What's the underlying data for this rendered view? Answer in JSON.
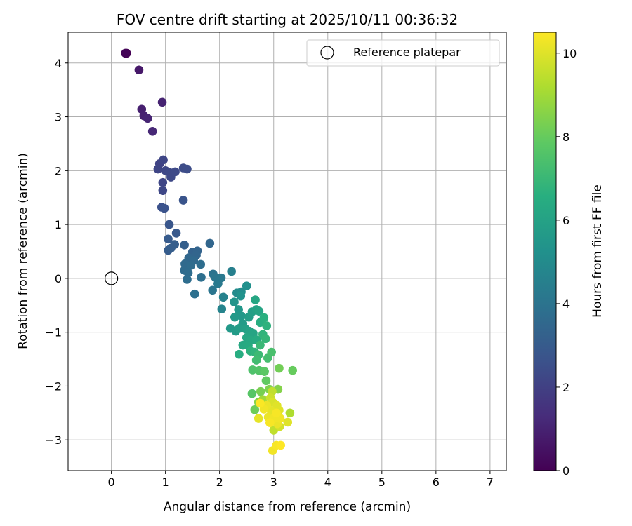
{
  "chart_data": {
    "type": "scatter",
    "title": "FOV centre drift starting at 2025/10/11 00:36:32",
    "xlabel": "Angular distance from reference (arcmin)",
    "ylabel": "Rotation from reference (arcmin)",
    "xlim": [
      -0.8,
      7.3
    ],
    "ylim": [
      -3.57,
      4.57
    ],
    "xticks": [
      0,
      1,
      2,
      3,
      4,
      5,
      6,
      7
    ],
    "yticks": [
      -3,
      -2,
      -1,
      0,
      1,
      2,
      3,
      4
    ],
    "grid": true,
    "legend": {
      "position": "top-right",
      "entries": [
        "Reference platepar"
      ]
    },
    "reference_point": {
      "x": 0,
      "y": 0,
      "label": "Reference platepar"
    },
    "colorbar": {
      "label": "Hours from first FF file",
      "colormap": "viridis",
      "range": [
        0,
        10.5
      ],
      "ticks": [
        0,
        2,
        4,
        6,
        8,
        10
      ]
    },
    "points": [
      {
        "x": 0.28,
        "y": 4.18,
        "h": 0.0
      },
      {
        "x": 0.26,
        "y": 4.18,
        "h": 0.1
      },
      {
        "x": 0.51,
        "y": 3.87,
        "h": 0.7
      },
      {
        "x": 0.94,
        "y": 3.27,
        "h": 1.0
      },
      {
        "x": 0.56,
        "y": 3.14,
        "h": 0.9
      },
      {
        "x": 0.6,
        "y": 3.02,
        "h": 0.95
      },
      {
        "x": 0.67,
        "y": 2.97,
        "h": 1.05
      },
      {
        "x": 0.76,
        "y": 2.73,
        "h": 1.15
      },
      {
        "x": 0.96,
        "y": 2.2,
        "h": 2.2
      },
      {
        "x": 0.89,
        "y": 2.13,
        "h": 2.1
      },
      {
        "x": 0.86,
        "y": 2.03,
        "h": 2.15
      },
      {
        "x": 1.0,
        "y": 2.0,
        "h": 2.25
      },
      {
        "x": 1.07,
        "y": 1.97,
        "h": 2.3
      },
      {
        "x": 1.18,
        "y": 1.98,
        "h": 2.35
      },
      {
        "x": 1.1,
        "y": 1.88,
        "h": 2.3
      },
      {
        "x": 1.33,
        "y": 2.05,
        "h": 2.4
      },
      {
        "x": 1.4,
        "y": 2.03,
        "h": 2.45
      },
      {
        "x": 0.95,
        "y": 1.78,
        "h": 2.2
      },
      {
        "x": 0.95,
        "y": 1.63,
        "h": 2.25
      },
      {
        "x": 1.33,
        "y": 1.45,
        "h": 2.7
      },
      {
        "x": 0.93,
        "y": 1.32,
        "h": 2.6
      },
      {
        "x": 0.98,
        "y": 1.3,
        "h": 2.65
      },
      {
        "x": 1.07,
        "y": 1.0,
        "h": 2.8
      },
      {
        "x": 1.2,
        "y": 0.84,
        "h": 2.9
      },
      {
        "x": 1.05,
        "y": 0.73,
        "h": 3.0
      },
      {
        "x": 1.17,
        "y": 0.63,
        "h": 3.1
      },
      {
        "x": 1.35,
        "y": 0.62,
        "h": 3.15
      },
      {
        "x": 1.05,
        "y": 0.52,
        "h": 3.05
      },
      {
        "x": 1.1,
        "y": 0.56,
        "h": 3.1
      },
      {
        "x": 1.5,
        "y": 0.49,
        "h": 3.3
      },
      {
        "x": 1.59,
        "y": 0.51,
        "h": 3.35
      },
      {
        "x": 1.57,
        "y": 0.43,
        "h": 3.4
      },
      {
        "x": 1.82,
        "y": 0.65,
        "h": 3.45
      },
      {
        "x": 1.43,
        "y": 0.38,
        "h": 3.5
      },
      {
        "x": 1.52,
        "y": 0.33,
        "h": 3.55
      },
      {
        "x": 1.36,
        "y": 0.27,
        "h": 3.6
      },
      {
        "x": 1.47,
        "y": 0.24,
        "h": 3.7
      },
      {
        "x": 1.65,
        "y": 0.26,
        "h": 3.75
      },
      {
        "x": 1.35,
        "y": 0.15,
        "h": 3.65
      },
      {
        "x": 1.42,
        "y": 0.1,
        "h": 3.7
      },
      {
        "x": 1.88,
        "y": 0.08,
        "h": 4.0
      },
      {
        "x": 1.92,
        "y": 0.02,
        "h": 4.1
      },
      {
        "x": 1.98,
        "y": -0.02,
        "h": 4.15
      },
      {
        "x": 2.03,
        "y": 0.01,
        "h": 4.2
      },
      {
        "x": 1.97,
        "y": -0.1,
        "h": 4.25
      },
      {
        "x": 1.4,
        "y": -0.02,
        "h": 3.75
      },
      {
        "x": 1.66,
        "y": 0.02,
        "h": 3.8
      },
      {
        "x": 1.87,
        "y": -0.22,
        "h": 4.05
      },
      {
        "x": 1.54,
        "y": -0.29,
        "h": 3.85
      },
      {
        "x": 2.22,
        "y": 0.13,
        "h": 4.5
      },
      {
        "x": 2.07,
        "y": -0.35,
        "h": 4.6
      },
      {
        "x": 2.04,
        "y": -0.57,
        "h": 4.7
      },
      {
        "x": 2.32,
        "y": -0.27,
        "h": 5.0
      },
      {
        "x": 2.4,
        "y": -0.25,
        "h": 5.1
      },
      {
        "x": 2.5,
        "y": -0.14,
        "h": 5.2
      },
      {
        "x": 2.39,
        "y": -0.33,
        "h": 5.3
      },
      {
        "x": 2.27,
        "y": -0.44,
        "h": 5.4
      },
      {
        "x": 2.35,
        "y": -0.58,
        "h": 5.5
      },
      {
        "x": 2.4,
        "y": -0.7,
        "h": 5.55
      },
      {
        "x": 2.28,
        "y": -0.72,
        "h": 5.6
      },
      {
        "x": 2.43,
        "y": -0.84,
        "h": 5.7
      },
      {
        "x": 2.54,
        "y": -0.72,
        "h": 5.8
      },
      {
        "x": 2.6,
        "y": -0.62,
        "h": 5.9
      },
      {
        "x": 2.68,
        "y": -0.58,
        "h": 6.0
      },
      {
        "x": 2.73,
        "y": -0.61,
        "h": 6.1
      },
      {
        "x": 2.66,
        "y": -0.4,
        "h": 6.2
      },
      {
        "x": 2.2,
        "y": -0.93,
        "h": 5.6
      },
      {
        "x": 2.3,
        "y": -0.98,
        "h": 5.7
      },
      {
        "x": 2.36,
        "y": -0.93,
        "h": 5.8
      },
      {
        "x": 2.48,
        "y": -0.94,
        "h": 5.9
      },
      {
        "x": 2.55,
        "y": -0.98,
        "h": 6.0
      },
      {
        "x": 2.62,
        "y": -1.02,
        "h": 6.1
      },
      {
        "x": 2.5,
        "y": -1.1,
        "h": 6.2
      },
      {
        "x": 2.58,
        "y": -1.15,
        "h": 6.3
      },
      {
        "x": 2.68,
        "y": -1.14,
        "h": 6.4
      },
      {
        "x": 2.75,
        "y": -0.82,
        "h": 6.5
      },
      {
        "x": 2.82,
        "y": -0.73,
        "h": 6.6
      },
      {
        "x": 2.87,
        "y": -0.88,
        "h": 6.7
      },
      {
        "x": 2.8,
        "y": -1.04,
        "h": 6.8
      },
      {
        "x": 2.85,
        "y": -1.12,
        "h": 6.9
      },
      {
        "x": 2.75,
        "y": -1.24,
        "h": 7.0
      },
      {
        "x": 2.43,
        "y": -1.24,
        "h": 6.3
      },
      {
        "x": 2.53,
        "y": -1.25,
        "h": 6.4
      },
      {
        "x": 2.36,
        "y": -1.41,
        "h": 6.5
      },
      {
        "x": 2.57,
        "y": -1.35,
        "h": 6.7
      },
      {
        "x": 2.65,
        "y": -1.37,
        "h": 6.8
      },
      {
        "x": 2.72,
        "y": -1.42,
        "h": 7.1
      },
      {
        "x": 2.68,
        "y": -1.52,
        "h": 7.2
      },
      {
        "x": 2.89,
        "y": -1.48,
        "h": 7.3
      },
      {
        "x": 2.96,
        "y": -1.37,
        "h": 7.4
      },
      {
        "x": 2.61,
        "y": -1.7,
        "h": 7.5
      },
      {
        "x": 2.73,
        "y": -1.71,
        "h": 7.6
      },
      {
        "x": 2.83,
        "y": -1.73,
        "h": 7.8
      },
      {
        "x": 2.86,
        "y": -1.9,
        "h": 7.9
      },
      {
        "x": 3.1,
        "y": -1.67,
        "h": 8.2
      },
      {
        "x": 3.35,
        "y": -1.71,
        "h": 8.0
      },
      {
        "x": 2.6,
        "y": -2.14,
        "h": 7.7
      },
      {
        "x": 2.76,
        "y": -2.1,
        "h": 8.3
      },
      {
        "x": 2.92,
        "y": -2.06,
        "h": 8.4
      },
      {
        "x": 3.08,
        "y": -2.06,
        "h": 8.5
      },
      {
        "x": 2.65,
        "y": -2.44,
        "h": 8.1
      },
      {
        "x": 2.72,
        "y": -2.3,
        "h": 8.6
      },
      {
        "x": 2.8,
        "y": -2.25,
        "h": 9.0
      },
      {
        "x": 2.97,
        "y": -2.1,
        "h": 9.5
      },
      {
        "x": 2.94,
        "y": -2.22,
        "h": 9.7
      },
      {
        "x": 2.98,
        "y": -2.3,
        "h": 9.9
      },
      {
        "x": 3.06,
        "y": -2.36,
        "h": 10.0
      },
      {
        "x": 2.87,
        "y": -2.36,
        "h": 10.2
      },
      {
        "x": 2.82,
        "y": -2.43,
        "h": 10.3
      },
      {
        "x": 2.95,
        "y": -2.46,
        "h": 10.1
      },
      {
        "x": 3.05,
        "y": -2.5,
        "h": 10.4
      },
      {
        "x": 3.1,
        "y": -2.45,
        "h": 10.0
      },
      {
        "x": 2.9,
        "y": -2.58,
        "h": 10.2
      },
      {
        "x": 3.0,
        "y": -2.6,
        "h": 10.3
      },
      {
        "x": 2.93,
        "y": -2.68,
        "h": 10.4
      },
      {
        "x": 3.07,
        "y": -2.7,
        "h": 10.2
      },
      {
        "x": 3.11,
        "y": -2.75,
        "h": 9.8
      },
      {
        "x": 3.3,
        "y": -2.5,
        "h": 9.2
      },
      {
        "x": 3.26,
        "y": -2.67,
        "h": 10.0
      },
      {
        "x": 2.75,
        "y": -2.32,
        "h": 10.45
      },
      {
        "x": 3.12,
        "y": -2.6,
        "h": 10.3
      },
      {
        "x": 2.72,
        "y": -2.6,
        "h": 10.1
      },
      {
        "x": 3.0,
        "y": -2.82,
        "h": 9.5
      },
      {
        "x": 3.05,
        "y": -3.1,
        "h": 10.4
      },
      {
        "x": 3.13,
        "y": -3.1,
        "h": 10.5
      },
      {
        "x": 2.98,
        "y": -3.2,
        "h": 10.3
      }
    ]
  }
}
